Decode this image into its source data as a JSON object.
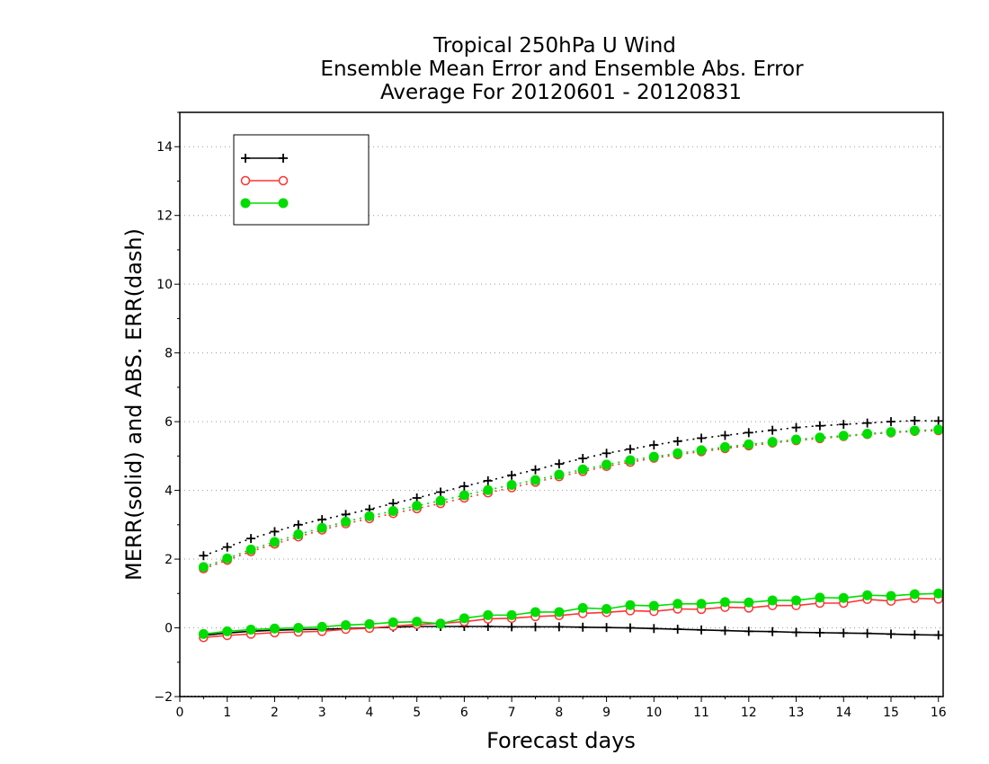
{
  "chart_data": {
    "type": "line",
    "title_lines": [
      "Tropical 250hPa U Wind",
      "Ensemble Mean Error and Ensemble Abs. Error",
      "Average For 20120601 - 20120831"
    ],
    "xlabel": "Forecast days",
    "ylabel": "MERR(solid) and ABS. ERR(dash)",
    "xlim": [
      0,
      16.1
    ],
    "ylim": [
      -2,
      15
    ],
    "xticks": [
      0,
      1,
      2,
      3,
      4,
      5,
      6,
      7,
      8,
      9,
      10,
      11,
      12,
      13,
      14,
      15,
      16
    ],
    "yticks": [
      -2,
      0,
      2,
      4,
      6,
      8,
      10,
      12,
      14
    ],
    "grid": "dotted horizontal",
    "legend_position": "top-left",
    "x": [
      0.5,
      1,
      1.5,
      2,
      2.5,
      3,
      3.5,
      4,
      4.5,
      5,
      5.5,
      6,
      6.5,
      7,
      7.5,
      8,
      8.5,
      9,
      9.5,
      10,
      10.5,
      11,
      11.5,
      12,
      12.5,
      13,
      13.5,
      14,
      14.5,
      15,
      15.5,
      16
    ],
    "series": [
      {
        "name": "",
        "color": "#000000",
        "marker": "plus",
        "mean_error": [
          -0.22,
          -0.15,
          -0.1,
          -0.07,
          -0.05,
          -0.04,
          -0.02,
          0.0,
          0.02,
          0.04,
          0.04,
          0.04,
          0.04,
          0.03,
          0.03,
          0.03,
          0.02,
          0.01,
          0.0,
          -0.02,
          -0.04,
          -0.06,
          -0.08,
          -0.1,
          -0.11,
          -0.13,
          -0.14,
          -0.15,
          -0.16,
          -0.18,
          -0.2,
          -0.21
        ],
        "abs_error": [
          2.1,
          2.35,
          2.6,
          2.8,
          3.0,
          3.15,
          3.3,
          3.45,
          3.62,
          3.78,
          3.95,
          4.12,
          4.28,
          4.44,
          4.6,
          4.77,
          4.93,
          5.08,
          5.2,
          5.32,
          5.43,
          5.52,
          5.6,
          5.68,
          5.75,
          5.83,
          5.88,
          5.92,
          5.96,
          6.0,
          6.03,
          6.02
        ]
      },
      {
        "name": "",
        "color": "#ff3333",
        "marker": "open-circle",
        "mean_error": [
          -0.28,
          -0.22,
          -0.18,
          -0.14,
          -0.12,
          -0.1,
          -0.04,
          -0.01,
          0.05,
          0.1,
          0.13,
          0.18,
          0.26,
          0.28,
          0.33,
          0.36,
          0.42,
          0.45,
          0.5,
          0.48,
          0.55,
          0.54,
          0.6,
          0.58,
          0.65,
          0.65,
          0.72,
          0.72,
          0.83,
          0.78,
          0.86,
          0.84
        ],
        "abs_error": [
          1.72,
          1.97,
          2.22,
          2.44,
          2.65,
          2.85,
          3.03,
          3.18,
          3.33,
          3.47,
          3.62,
          3.78,
          3.93,
          4.08,
          4.24,
          4.4,
          4.55,
          4.7,
          4.82,
          4.94,
          5.04,
          5.13,
          5.22,
          5.3,
          5.38,
          5.45,
          5.51,
          5.57,
          5.63,
          5.68,
          5.72,
          5.74
        ]
      },
      {
        "name": "",
        "color": "#00dd00",
        "marker": "filled-circle",
        "mean_error": [
          -0.18,
          -0.1,
          -0.05,
          -0.02,
          0.0,
          0.03,
          0.08,
          0.11,
          0.16,
          0.18,
          0.12,
          0.28,
          0.37,
          0.37,
          0.46,
          0.46,
          0.58,
          0.55,
          0.66,
          0.64,
          0.7,
          0.7,
          0.75,
          0.74,
          0.8,
          0.8,
          0.88,
          0.87,
          0.95,
          0.93,
          0.98,
          1.0
        ],
        "abs_error": [
          1.77,
          2.02,
          2.28,
          2.5,
          2.72,
          2.91,
          3.09,
          3.25,
          3.4,
          3.55,
          3.7,
          3.86,
          4.01,
          4.16,
          4.3,
          4.46,
          4.61,
          4.75,
          4.88,
          4.98,
          5.08,
          5.17,
          5.26,
          5.34,
          5.41,
          5.48,
          5.54,
          5.59,
          5.65,
          5.7,
          5.74,
          5.77
        ]
      }
    ]
  }
}
